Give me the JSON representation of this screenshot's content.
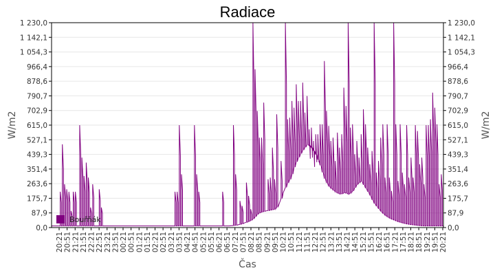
{
  "chart_data": {
    "type": "line",
    "title": "Radiace",
    "xlabel": "Čas",
    "ylabel": "W/m2",
    "ylabel_right": "W/m2",
    "ylim": [
      0,
      1230
    ],
    "yticks": [
      "0,0",
      "87,9",
      "175,7",
      "263,6",
      "351,4",
      "439,3",
      "527,1",
      "615,0",
      "702,9",
      "790,7",
      "878,6",
      "966,4",
      "1 054,3",
      "1 142,1",
      "1 230,0"
    ],
    "xticks": [
      "20:21",
      "20:51",
      "21:21",
      "21:51",
      "22:21",
      "22:51",
      "23:21",
      "23:51",
      "00:21",
      "00:51",
      "01:21",
      "01:51",
      "02:21",
      "02:51",
      "03:21",
      "03:51",
      "04:21",
      "04:51",
      "05:21",
      "05:51",
      "06:21",
      "06:51",
      "07:21",
      "07:51",
      "08:21",
      "08:51",
      "09:21",
      "09:51",
      "10:21",
      "10:51",
      "11:21",
      "11:51",
      "12:21",
      "12:51",
      "13:21",
      "13:51",
      "14:21",
      "14:51",
      "15:21",
      "15:51",
      "16:21",
      "16:51",
      "17:21",
      "17:51",
      "18:21",
      "18:51",
      "19:21",
      "19:51",
      "20:21"
    ],
    "grid": true,
    "legend": {
      "position": "bottom-left-inside",
      "entries": [
        "Bouřňák"
      ]
    },
    "series": [
      {
        "name": "Bouřňák",
        "color": "#800080",
        "baseline": [
          10,
          10,
          10,
          10,
          10,
          10,
          10,
          10,
          10,
          10,
          10,
          10,
          10,
          10,
          10,
          10,
          10,
          10,
          10,
          10,
          10,
          10,
          10,
          10,
          10,
          10,
          10,
          10,
          10,
          10,
          10,
          10,
          10,
          10,
          10,
          10,
          10,
          10,
          10,
          10,
          10,
          10,
          10,
          10,
          12,
          15,
          22,
          30,
          40,
          55,
          85,
          95,
          100,
          105,
          110,
          130,
          200,
          260,
          300,
          380,
          430,
          470,
          500,
          480,
          440,
          380,
          300,
          250,
          230,
          210,
          200,
          210,
          200,
          220,
          260,
          280,
          240,
          200,
          150,
          120,
          90,
          70,
          55,
          45,
          35,
          28,
          22,
          18,
          15,
          12,
          10,
          10,
          10,
          10,
          10,
          10
        ],
        "peaks": [
          [
            4,
            215
          ],
          [
            5,
            500
          ],
          [
            6,
            260
          ],
          [
            7,
            230
          ],
          [
            8,
            215
          ],
          [
            9,
            100
          ],
          [
            10,
            215
          ],
          [
            11,
            215
          ],
          [
            13,
            615
          ],
          [
            14,
            420
          ],
          [
            15,
            310
          ],
          [
            16,
            390
          ],
          [
            17,
            300
          ],
          [
            18,
            120
          ],
          [
            19,
            260
          ],
          [
            22,
            230
          ],
          [
            23,
            120
          ],
          [
            57,
            215
          ],
          [
            58,
            215
          ],
          [
            59,
            615
          ],
          [
            60,
            320
          ],
          [
            66,
            615
          ],
          [
            67,
            320
          ],
          [
            68,
            215
          ],
          [
            79,
            215
          ],
          [
            84,
            615
          ],
          [
            85,
            320
          ],
          [
            87,
            160
          ],
          [
            88,
            130
          ],
          [
            90,
            270
          ],
          [
            91,
            190
          ],
          [
            92,
            110
          ],
          [
            93,
            1230
          ],
          [
            94,
            950
          ],
          [
            95,
            700
          ],
          [
            96,
            540
          ],
          [
            97,
            540
          ],
          [
            98,
            750
          ],
          [
            100,
            290
          ],
          [
            101,
            300
          ],
          [
            102,
            480
          ],
          [
            103,
            290
          ],
          [
            104,
            680
          ],
          [
            106,
            400
          ],
          [
            108,
            1230
          ],
          [
            109,
            650
          ],
          [
            110,
            660
          ],
          [
            111,
            760
          ],
          [
            112,
            720
          ],
          [
            113,
            860
          ],
          [
            114,
            760
          ],
          [
            115,
            760
          ],
          [
            116,
            870
          ],
          [
            117,
            690
          ],
          [
            118,
            790
          ],
          [
            119,
            590
          ],
          [
            120,
            600
          ],
          [
            121,
            520
          ],
          [
            122,
            560
          ],
          [
            123,
            560
          ],
          [
            124,
            620
          ],
          [
            125,
            620
          ],
          [
            126,
            1000
          ],
          [
            127,
            700
          ],
          [
            128,
            610
          ],
          [
            129,
            520
          ],
          [
            130,
            540
          ],
          [
            131,
            400
          ],
          [
            132,
            570
          ],
          [
            133,
            480
          ],
          [
            134,
            560
          ],
          [
            135,
            840
          ],
          [
            136,
            730
          ],
          [
            137,
            1230
          ],
          [
            138,
            600
          ],
          [
            139,
            620
          ],
          [
            140,
            440
          ],
          [
            141,
            520
          ],
          [
            142,
            420
          ],
          [
            143,
            560
          ],
          [
            144,
            710
          ],
          [
            145,
            620
          ],
          [
            146,
            480
          ],
          [
            147,
            380
          ],
          [
            148,
            460
          ],
          [
            149,
            1230
          ],
          [
            150,
            330
          ],
          [
            151,
            400
          ],
          [
            152,
            540
          ],
          [
            153,
            620
          ],
          [
            154,
            300
          ],
          [
            155,
            620
          ],
          [
            156,
            300
          ],
          [
            157,
            220
          ],
          [
            158,
            1230
          ],
          [
            159,
            620
          ],
          [
            160,
            280
          ],
          [
            161,
            620
          ],
          [
            162,
            330
          ],
          [
            163,
            260
          ],
          [
            164,
            615
          ],
          [
            165,
            300
          ],
          [
            166,
            420
          ],
          [
            167,
            300
          ],
          [
            168,
            615
          ],
          [
            169,
            580
          ],
          [
            170,
            380
          ],
          [
            171,
            420
          ],
          [
            172,
            260
          ],
          [
            173,
            615
          ],
          [
            174,
            615
          ],
          [
            175,
            650
          ],
          [
            176,
            810
          ],
          [
            177,
            720
          ],
          [
            178,
            620
          ],
          [
            179,
            260
          ],
          [
            180,
            320
          ]
        ]
      }
    ]
  },
  "labels": {
    "title": "Radiace",
    "xlabel": "Čas",
    "ylabel_left": "W/m2",
    "ylabel_right": "W/m2",
    "legend_entry": "Bouřňák"
  }
}
